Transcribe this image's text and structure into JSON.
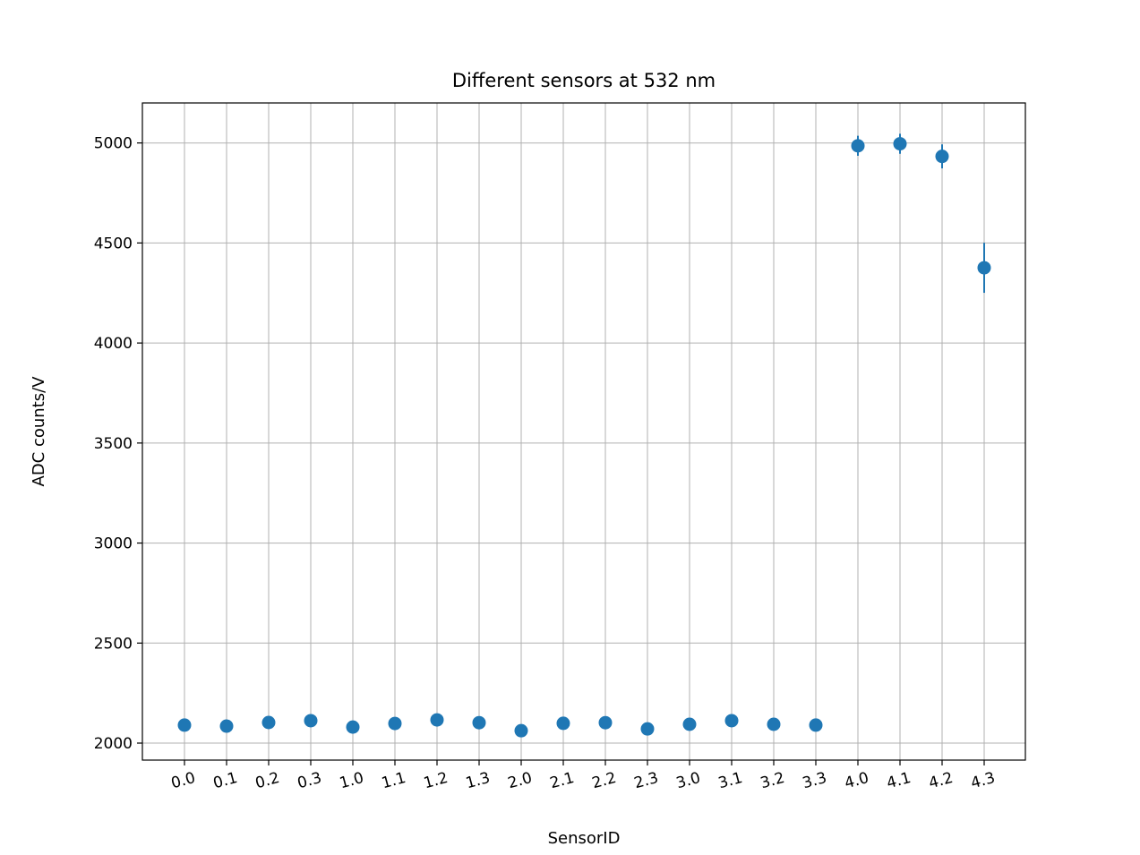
{
  "chart_data": {
    "type": "scatter",
    "title": "Different sensors at 532 nm",
    "xlabel": "SensorID",
    "ylabel": "ADC counts/V",
    "categories": [
      "0.0",
      "0.1",
      "0.2",
      "0.3",
      "1.0",
      "1.1",
      "1.2",
      "1.3",
      "2.0",
      "2.1",
      "2.2",
      "2.3",
      "3.0",
      "3.1",
      "3.2",
      "3.3",
      "4.0",
      "4.1",
      "4.2",
      "4.3"
    ],
    "values": [
      2090,
      2085,
      2103,
      2112,
      2080,
      2098,
      2116,
      2102,
      2062,
      2099,
      2102,
      2071,
      2094,
      2112,
      2094,
      2090,
      4986,
      4996,
      4933,
      4376
    ],
    "errors": [
      18,
      18,
      18,
      18,
      18,
      18,
      18,
      18,
      18,
      18,
      18,
      18,
      18,
      18,
      18,
      18,
      50,
      50,
      60,
      125
    ],
    "yticks": [
      2000,
      2500,
      3000,
      3500,
      4000,
      4500,
      5000
    ],
    "ylim": [
      1915,
      5200
    ],
    "grid": true,
    "color": "#1f77b4"
  }
}
